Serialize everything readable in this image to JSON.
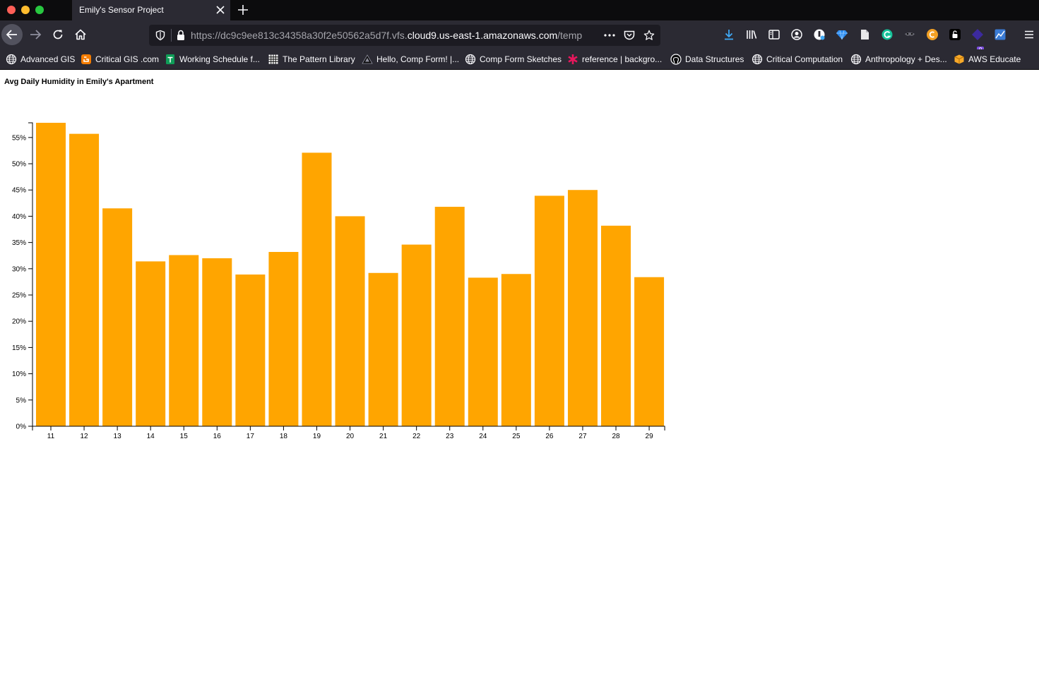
{
  "browser": {
    "tab_title": "Emily's Sensor Project",
    "url": {
      "prefix": "https://dc9c9ee813c34358a30f2e50562a5d7f.vfs.",
      "host": "cloud9.us-east-1.amazonaws.com",
      "suffix": "/temp"
    },
    "extension_badge": "9",
    "toolbar_icons": [
      "download-icon",
      "library-icon",
      "sidebar-icon",
      "account-icon",
      "password-manager-icon",
      "gem-extension-icon",
      "document-icon",
      "grammarly-icon",
      "mask-extension-icon",
      "coin-extension-icon",
      "lock-extension-icon",
      "badge-extension-icon",
      "screenshot-extension-icon",
      "menu-icon"
    ]
  },
  "bookmarks": [
    {
      "label": "Advanced GIS",
      "icon": "globe-icon"
    },
    {
      "label": "Critical GIS .com",
      "icon": "blogger-icon"
    },
    {
      "label": "Working Schedule f...",
      "icon": "sheets-icon"
    },
    {
      "label": "The Pattern Library",
      "icon": "grid-icon"
    },
    {
      "label": "Hello, Comp Form! |...",
      "icon": "triangle-icon"
    },
    {
      "label": "Comp Form Sketches",
      "icon": "globe-icon"
    },
    {
      "label": "reference | backgro...",
      "icon": "asterisk-icon"
    },
    {
      "label": "Data Structures",
      "icon": "github-icon"
    },
    {
      "label": "Critical Computation",
      "icon": "globe-icon"
    },
    {
      "label": "Anthropology + Des...",
      "icon": "globe-icon"
    },
    {
      "label": "AWS Educate",
      "icon": "box-icon"
    }
  ],
  "page": {
    "title": "Avg Daily Humidity in Emily's Apartment"
  },
  "colors": {
    "bar": "#ffa500",
    "chrome_dark": "#2b2a33",
    "tabstrip": "#0c0c0d"
  },
  "chart_data": {
    "type": "bar",
    "categories": [
      "11",
      "12",
      "13",
      "14",
      "15",
      "16",
      "17",
      "18",
      "19",
      "20",
      "21",
      "22",
      "23",
      "24",
      "25",
      "26",
      "27",
      "28",
      "29"
    ],
    "values": [
      0.578,
      0.557,
      0.415,
      0.314,
      0.326,
      0.32,
      0.289,
      0.332,
      0.521,
      0.4,
      0.292,
      0.346,
      0.418,
      0.283,
      0.29,
      0.439,
      0.45,
      0.382,
      0.284
    ],
    "y_ticks": [
      "0%",
      "5%",
      "10%",
      "15%",
      "20%",
      "25%",
      "30%",
      "35%",
      "40%",
      "45%",
      "50%",
      "55%"
    ],
    "ylim": [
      0,
      0.578
    ],
    "title": "Avg Daily Humidity in Emily's Apartment",
    "xlabel": "",
    "ylabel": "",
    "grid": false
  }
}
